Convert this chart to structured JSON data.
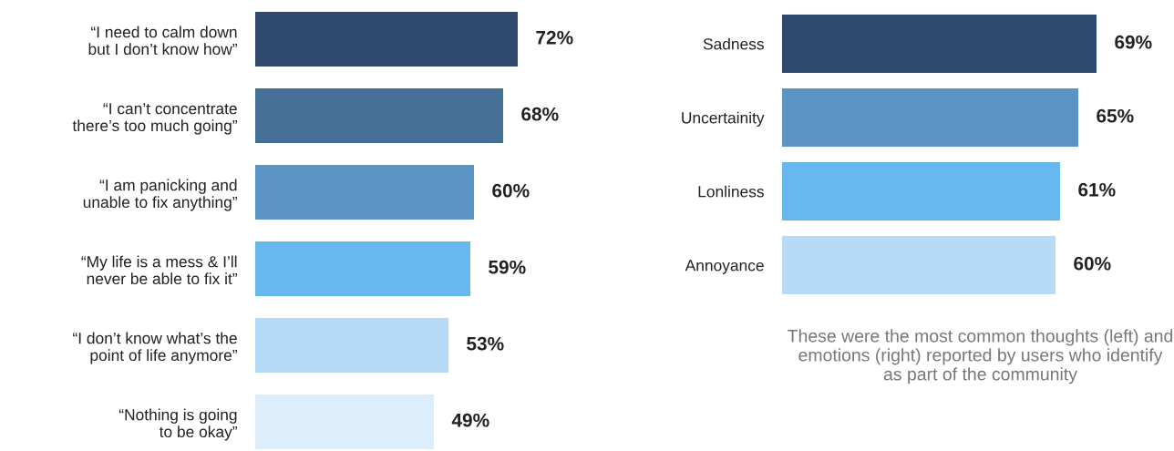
{
  "chart_data": [
    {
      "type": "bar",
      "orientation": "horizontal",
      "tick_labels": "y",
      "categories": [
        "“I need to calm down\nbut I don’t know how”",
        "“I can’t concentrate\nthere’s too much going”",
        "“I am panicking and\nunable to fix anything”",
        "“My life is a mess & I’ll\nnever be able to fix it”",
        "“I don’t know what’s the\npoint of life anymore”",
        "“Nothing is going\nto be okay”"
      ],
      "values": [
        72,
        68,
        60,
        59,
        53,
        49
      ],
      "value_labels": [
        "72%",
        "68%",
        "60%",
        "59%",
        "53%",
        "49%"
      ],
      "colors": [
        "#2f4a6e",
        "#466f98",
        "#5b93c4",
        "#66b8ef",
        "#b5dbf7",
        "#dceefc"
      ]
    },
    {
      "type": "bar",
      "orientation": "horizontal",
      "tick_labels": "y",
      "categories": [
        "Sadness",
        "Uncertainity",
        "Lonliness",
        "Annoyance"
      ],
      "values": [
        69,
        65,
        61,
        60
      ],
      "value_labels": [
        "69%",
        "65%",
        "61%",
        "60%"
      ],
      "colors": [
        "#2f4a6e",
        "#5b93c4",
        "#66b8ef",
        "#b5dbf7"
      ],
      "annotations": [
        "These were the most common thoughts (left) and emotions (right) reported by users who identify as part of the community"
      ]
    }
  ]
}
